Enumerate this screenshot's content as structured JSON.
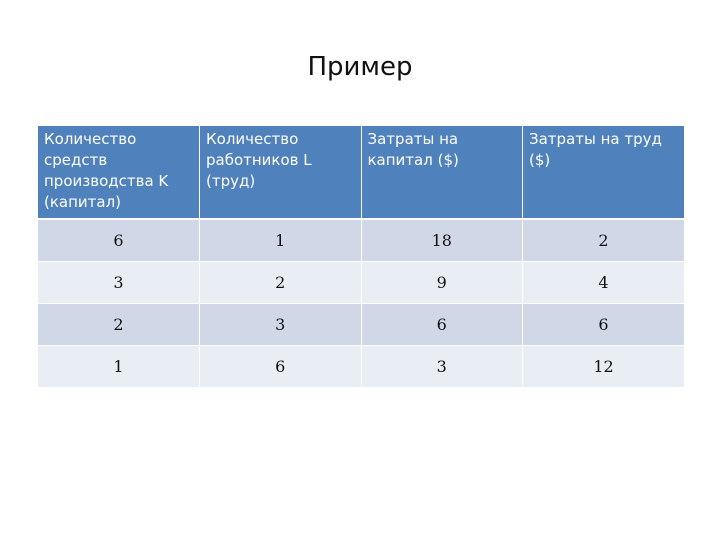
{
  "slide": {
    "title": "Пример"
  },
  "table": {
    "headers": [
      "Количество средств производства K (капитал)",
      "Количество работников L  (труд)",
      "Затраты на капитал ($)",
      "Затраты на труд ($)"
    ],
    "rows": [
      [
        "6",
        "1",
        "18",
        "2"
      ],
      [
        "3",
        "2",
        "9",
        "4"
      ],
      [
        "2",
        "3",
        "6",
        "6"
      ],
      [
        "1",
        "6",
        "3",
        "12"
      ]
    ]
  },
  "colors": {
    "header_bg": "#4f81bd",
    "row_odd": "#d0d8e8",
    "row_even": "#e9edf4"
  }
}
